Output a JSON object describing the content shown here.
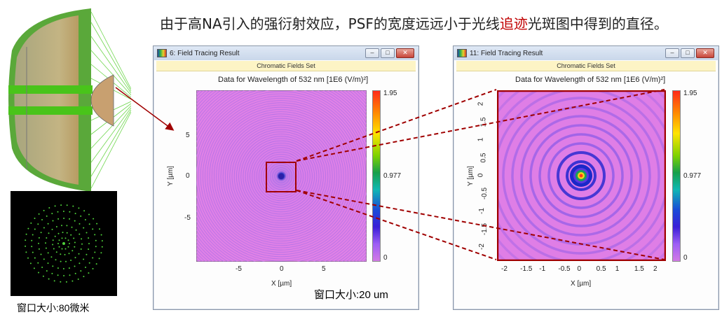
{
  "headline": {
    "before": "由于高NA引入的强衍射效应，PSF的宽度远远小于光线",
    "highlight": "追迹",
    "after": "光斑图中得到的直径。"
  },
  "left_caption": "窗口大小:80微米",
  "colors": {
    "psf_background": "#df7ee6",
    "ring_dark": "#7755e0",
    "annotation_red": "#a00000"
  },
  "window1": {
    "title": "6: Field Tracing Result",
    "subtitle": "Chromatic Fields Set",
    "plot_title": "Data for Wavelength of 532 nm  [1E6 (V/m)²]",
    "x_label": "X [µm]",
    "y_label": "Y [µm]",
    "x_ticks": [
      "-5",
      "0",
      "5"
    ],
    "y_ticks": [
      "5",
      "0",
      "-5"
    ],
    "colorbar_ticks": [
      "1.95",
      "0.977",
      "0"
    ],
    "caption": "窗口大小:20 um"
  },
  "window2": {
    "title": "11: Field Tracing Result",
    "subtitle": "Chromatic Fields Set",
    "plot_title": "Data for Wavelength of 532 nm  [1E6 (V/m)²]",
    "x_label": "X [µm]",
    "y_label": "Y [µm]",
    "x_ticks": [
      "-2",
      "-1.5",
      "-1",
      "-0.5",
      "0",
      "0.5",
      "1",
      "1.5",
      "2"
    ],
    "y_ticks": [
      "2",
      "1.5",
      "1",
      "0.5",
      "0",
      "-0.5",
      "-1",
      "-1.5",
      "-2"
    ],
    "colorbar_ticks": [
      "1.95",
      "0.977",
      "0"
    ]
  }
}
